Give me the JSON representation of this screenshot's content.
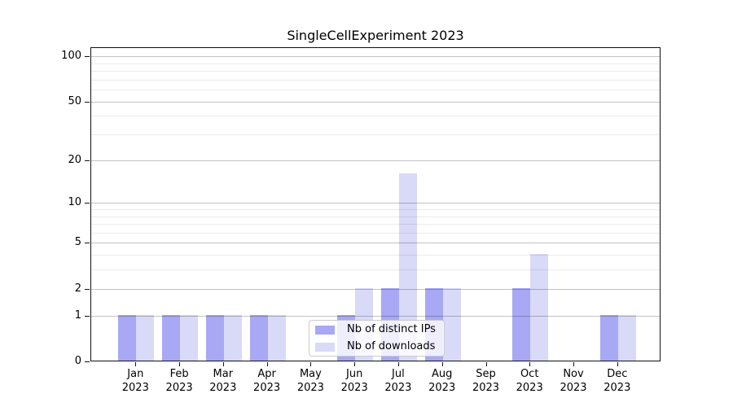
{
  "chart_data": {
    "type": "bar",
    "title": "SingleCellExperiment 2023",
    "categories": [
      "Jan",
      "Feb",
      "Mar",
      "Apr",
      "May",
      "Jun",
      "Jul",
      "Aug",
      "Sep",
      "Oct",
      "Nov",
      "Dec"
    ],
    "year": "2023",
    "series": [
      {
        "name": "Nb of distinct IPs",
        "color": "#a8a8f5",
        "values": [
          1,
          1,
          1,
          1,
          0,
          1,
          2,
          2,
          0,
          2,
          0,
          1
        ]
      },
      {
        "name": "Nb of downloads",
        "color": "#d9d9f8",
        "values": [
          1,
          1,
          1,
          1,
          0,
          2,
          16,
          2,
          0,
          4,
          0,
          1
        ]
      }
    ],
    "y_axis": {
      "scale": "log1p",
      "ticks": [
        0,
        1,
        2,
        5,
        10,
        20,
        50,
        100
      ],
      "minor_gridlines": [
        3,
        4,
        6,
        7,
        8,
        9,
        30,
        40,
        60,
        70,
        80,
        90
      ],
      "ylim": [
        0,
        115
      ]
    },
    "grid": true,
    "legend_position": "inside-bottom-center"
  }
}
